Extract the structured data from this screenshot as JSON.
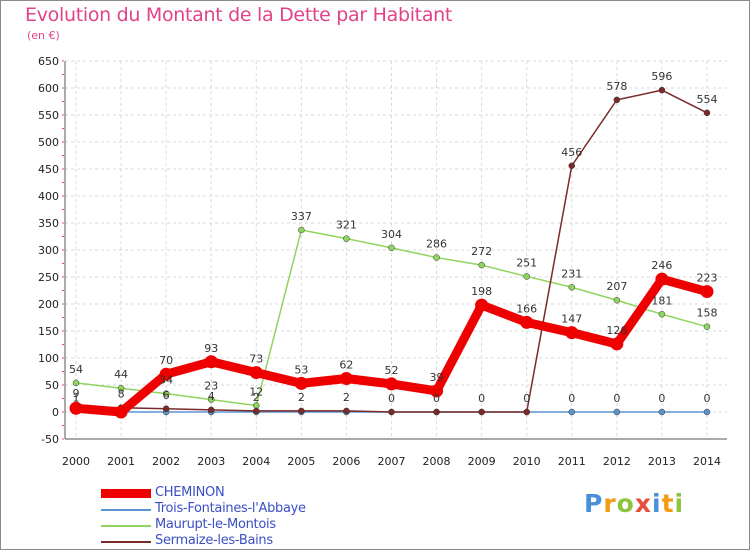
{
  "header": {
    "title": "Evolution du Montant de la Dette par Habitant",
    "unit": "(en €)"
  },
  "logo": {
    "letters": [
      "P",
      "r",
      "o",
      "x",
      "i",
      "t",
      "i"
    ]
  },
  "chart_data": {
    "type": "line",
    "title": "Evolution du Montant de la Dette par Habitant",
    "ylabel": "(en €)",
    "xlabel": "",
    "ylim": [
      -50,
      650
    ],
    "yticks": [
      -50,
      0,
      50,
      100,
      150,
      200,
      250,
      300,
      350,
      400,
      450,
      500,
      550,
      600,
      650
    ],
    "categories": [
      "2000",
      "2001",
      "2002",
      "2003",
      "2004",
      "2005",
      "2006",
      "2007",
      "2008",
      "2009",
      "2010",
      "2011",
      "2012",
      "2013",
      "2014"
    ],
    "grid": true,
    "legend_position": "bottom-left",
    "series": [
      {
        "name": "CHEMINON",
        "color": "#ee0000",
        "values": [
          7,
          0,
          70,
          93,
          73,
          53,
          62,
          52,
          39,
          198,
          166,
          147,
          126,
          246,
          223
        ],
        "labels": [
          "",
          "",
          "70",
          "93",
          "73",
          "53",
          "62",
          "52",
          "39",
          "198",
          "166",
          "147",
          "126",
          "246",
          "223"
        ]
      },
      {
        "name": "Trois-Fontaines-l'Abbaye",
        "color": "#5b93d0",
        "values": [
          1,
          0,
          0,
          0,
          0,
          0,
          0,
          0,
          0,
          0,
          0,
          0,
          0,
          0,
          0
        ],
        "labels": [
          "1",
          "",
          "",
          "",
          "",
          "",
          "",
          "",
          "",
          "",
          "",
          "0",
          "0",
          "0",
          "0"
        ]
      },
      {
        "name": "Maurupt-le-Montois",
        "color": "#8fd45f",
        "values": [
          54,
          44,
          34,
          23,
          12,
          337,
          321,
          304,
          286,
          272,
          251,
          231,
          207,
          181,
          158
        ],
        "labels": [
          "54",
          "44",
          "34",
          "23",
          "12",
          "337",
          "321",
          "304",
          "286",
          "272",
          "251",
          "231",
          "207",
          "181",
          "158"
        ]
      },
      {
        "name": "Sermaize-les-Bains",
        "color": "#7a2a2a",
        "values": [
          9,
          8,
          6,
          4,
          2,
          2,
          2,
          0,
          0,
          0,
          0,
          456,
          578,
          596,
          554
        ],
        "labels": [
          "9",
          "8",
          "6",
          "4",
          "2",
          "2",
          "2",
          "0",
          "0",
          "0",
          "0",
          "456",
          "578",
          "596",
          "554"
        ]
      }
    ]
  }
}
